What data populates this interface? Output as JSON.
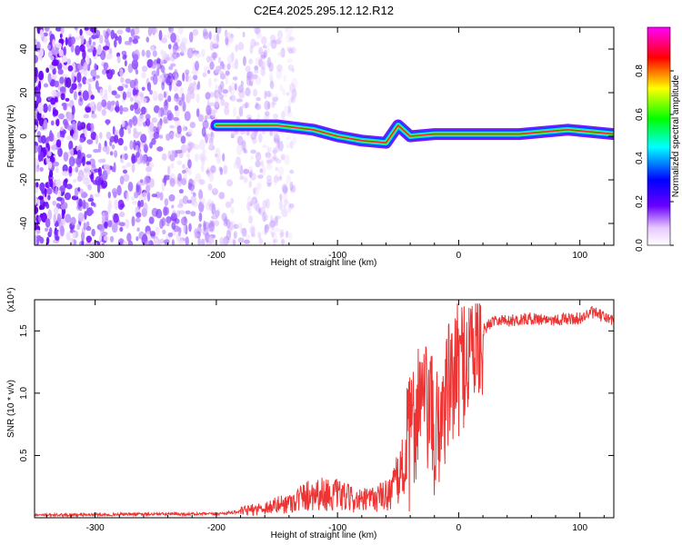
{
  "page_title": "C2E4.2025.295.12.12.R12",
  "chart_data": [
    {
      "type": "heatmap",
      "title": "C2E4.2025.295.12.12.R12",
      "xlabel": "Height of straight line (km)",
      "ylabel": "Frequency (Hz)",
      "xlim": [
        -350,
        128
      ],
      "ylim": [
        -50,
        50
      ],
      "xticks": [
        -300,
        -200,
        -100,
        0,
        100
      ],
      "yticks": [
        -40,
        -20,
        0,
        20,
        40
      ],
      "xtick_labels": [
        "-300",
        "-200",
        "-100",
        "0",
        "100"
      ],
      "ytick_labels": [
        "-40",
        "-20",
        "0",
        "20",
        "40"
      ],
      "colorbar": {
        "label": "Normalized spectral amplitude",
        "range": [
          0,
          1
        ],
        "ticks": [
          0.0,
          0.2,
          0.4,
          0.6,
          0.8
        ],
        "tick_labels": [
          "0.0",
          "0.2",
          "0.4",
          "0.6",
          "0.8"
        ],
        "colormap": [
          "#ffffff",
          "#6a00ff",
          "#0000ff",
          "#00ffff",
          "#00ff00",
          "#ffff00",
          "#ff0000",
          "#ff00ff"
        ]
      },
      "ridge": [
        {
          "x": -200,
          "f": 5
        },
        {
          "x": -150,
          "f": 5
        },
        {
          "x": -120,
          "f": 3
        },
        {
          "x": -100,
          "f": 0
        },
        {
          "x": -80,
          "f": -2
        },
        {
          "x": -60,
          "f": -3
        },
        {
          "x": -50,
          "f": 5
        },
        {
          "x": -40,
          "f": 0
        },
        {
          "x": -20,
          "f": 1
        },
        {
          "x": 0,
          "f": 1
        },
        {
          "x": 50,
          "f": 1
        },
        {
          "x": 90,
          "f": 3
        },
        {
          "x": 128,
          "f": 1
        }
      ]
    },
    {
      "type": "line",
      "xlabel": "Height of straight line (km)",
      "ylabel": "SNR (10 * v/v)",
      "y_multiplier": "(x10⁴)",
      "xlim": [
        -350,
        128
      ],
      "ylim": [
        0,
        1.75
      ],
      "xticks": [
        -300,
        -200,
        -100,
        0,
        100
      ],
      "yticks": [
        0.5,
        1.0,
        1.5
      ],
      "xtick_labels": [
        "-300",
        "-200",
        "-100",
        "0",
        "100"
      ],
      "ytick_labels": [
        "0.5",
        "1.0",
        "1.5"
      ],
      "color": "#ee3333",
      "series": [
        {
          "name": "SNR",
          "x": [
            -350,
            -250,
            -200,
            -180,
            -160,
            -140,
            -120,
            -100,
            -80,
            -60,
            -50,
            -40,
            -32,
            -28,
            -24,
            -20,
            -10,
            0,
            10,
            20,
            30,
            40,
            60,
            80,
            100,
            110,
            128
          ],
          "y": [
            0.02,
            0.03,
            0.03,
            0.05,
            0.08,
            0.12,
            0.2,
            0.18,
            0.13,
            0.18,
            0.3,
            0.6,
            1.0,
            0.85,
            0.9,
            0.6,
            1.0,
            1.2,
            1.35,
            1.5,
            1.6,
            1.58,
            1.6,
            1.59,
            1.6,
            1.65,
            1.58
          ]
        }
      ]
    }
  ]
}
